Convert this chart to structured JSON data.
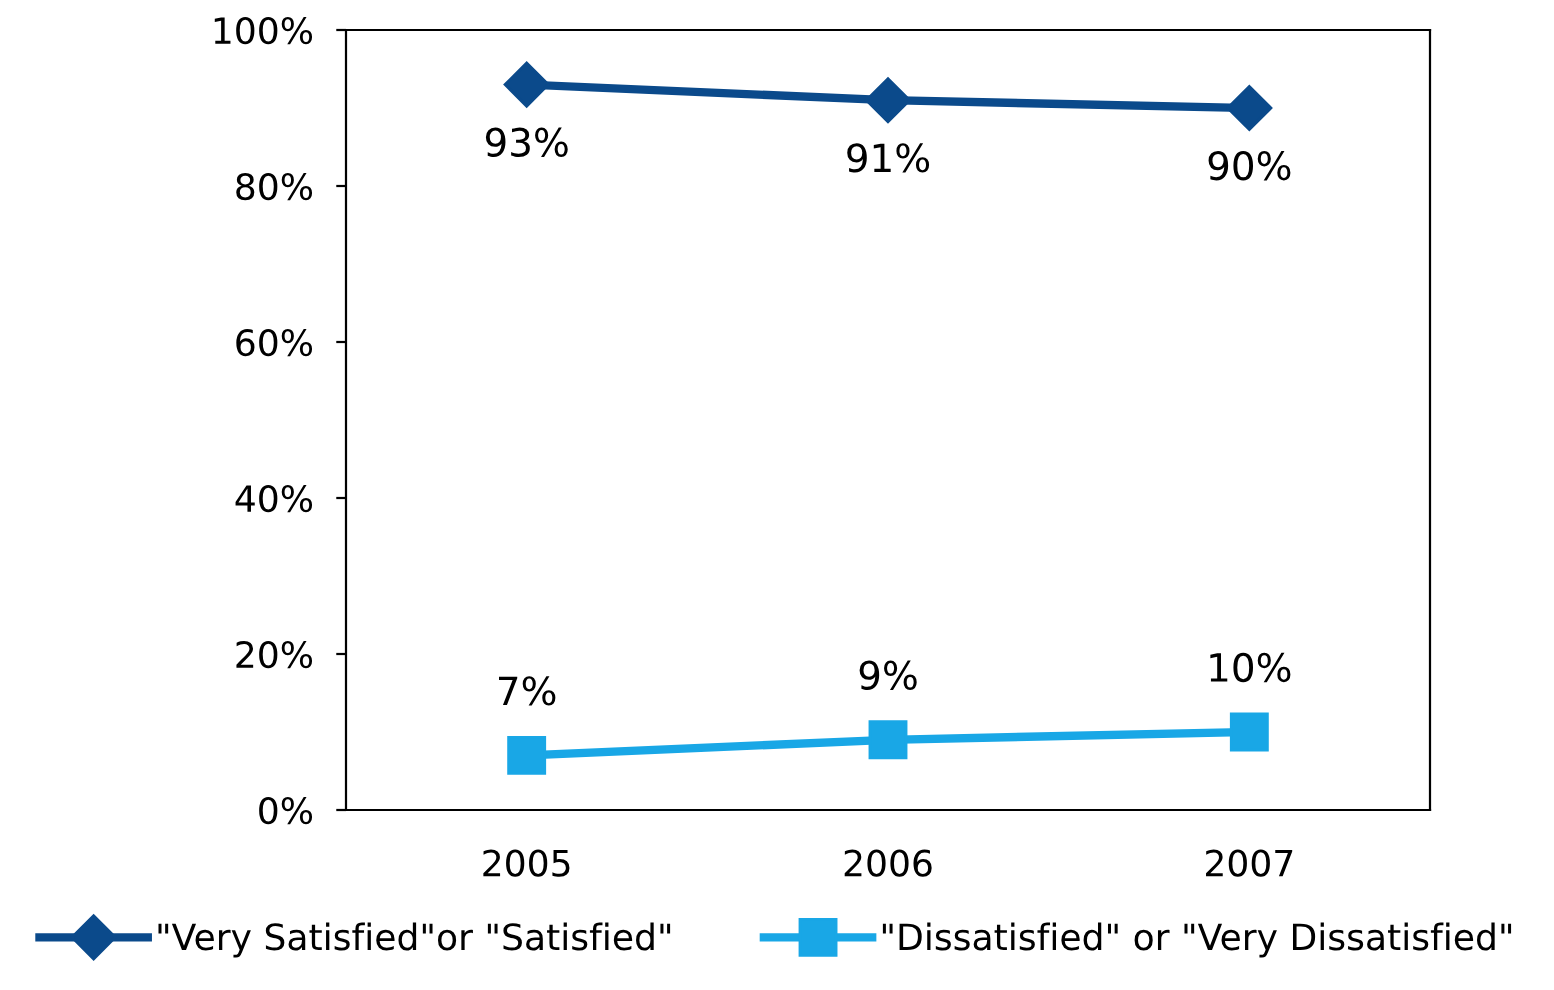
{
  "chart_data": {
    "type": "line",
    "categories": [
      "2005",
      "2006",
      "2007"
    ],
    "series": [
      {
        "name": "\"Very Satisfied\"or \"Satisfied\"",
        "color": "#0b4a8b",
        "marker": "diamond",
        "values": [
          93,
          91,
          90
        ],
        "value_labels": [
          "93%",
          "91%",
          "90%"
        ]
      },
      {
        "name": "\"Dissatisfied\" or \"Very Dissatisfied\"",
        "color": "#19a7e6",
        "marker": "square",
        "values": [
          7,
          9,
          10
        ],
        "value_labels": [
          "7%",
          "9%",
          "10%"
        ]
      }
    ],
    "ylim": [
      0,
      100
    ],
    "yticks": [
      {
        "value": 0,
        "label": "0%"
      },
      {
        "value": 20,
        "label": "20%"
      },
      {
        "value": 40,
        "label": "40%"
      },
      {
        "value": 60,
        "label": "60%"
      },
      {
        "value": 80,
        "label": "80%"
      },
      {
        "value": 100,
        "label": "100%"
      }
    ],
    "grid": false,
    "legend": "bottom"
  }
}
